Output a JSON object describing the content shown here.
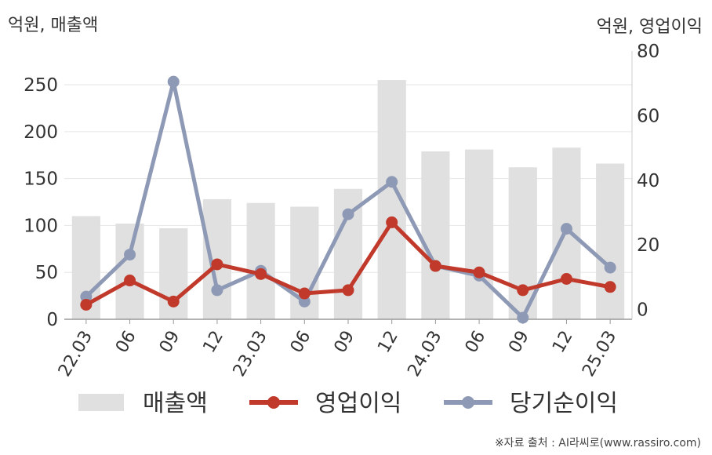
{
  "chart_data": {
    "type": "bar+line",
    "left_axis_unit": "억원, 매출액",
    "right_axis_unit": "억원, 영업이익",
    "source": "※자료 출처 : AI라씨로(www.rassiro.com)",
    "categories": [
      "22.03",
      "06",
      "09",
      "12",
      "23.03",
      "06",
      "09",
      "12",
      "24.03",
      "06",
      "09",
      "12",
      "25.03"
    ],
    "y_left": {
      "ticks": [
        0,
        50,
        100,
        150,
        200,
        250
      ],
      "max": 286
    },
    "y_right": {
      "ticks": [
        0,
        20,
        40,
        60,
        80
      ],
      "min": -3,
      "max": 80
    },
    "series": [
      {
        "name": "매출액",
        "type": "bar",
        "axis": "left",
        "color": "#e0e0e0",
        "values": [
          110,
          102,
          97,
          128,
          124,
          120,
          139,
          255,
          179,
          181,
          162,
          183,
          166
        ]
      },
      {
        "name": "영업이익",
        "type": "line",
        "axis": "right",
        "color": "#c0392b",
        "values": [
          1.5,
          9,
          2.5,
          14,
          11,
          5,
          6,
          27,
          13.5,
          11.5,
          6,
          9.5,
          7
        ]
      },
      {
        "name": "당기순이익",
        "type": "line",
        "axis": "right",
        "color": "#8e9ab5",
        "values": [
          4,
          17,
          70.5,
          6,
          12,
          2.5,
          29.5,
          39.5,
          13.5,
          10.5,
          -2.5,
          25,
          13
        ]
      }
    ],
    "legend_position": "bottom",
    "grid": true
  }
}
